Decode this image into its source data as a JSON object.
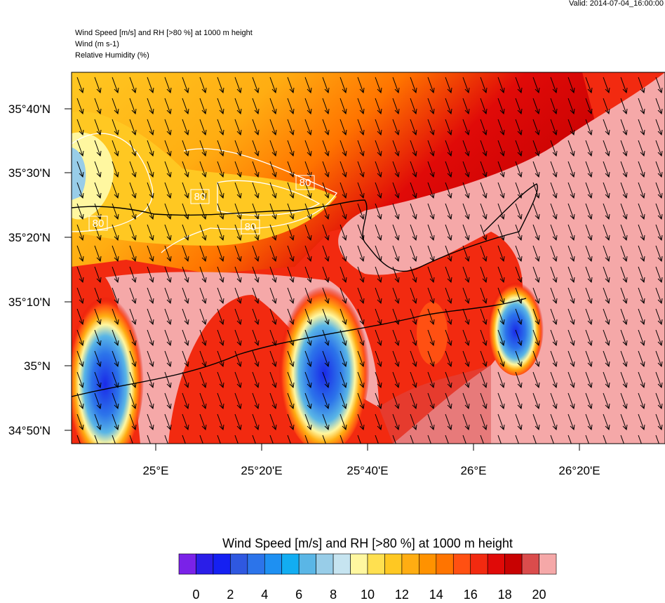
{
  "header": {
    "valid": "Valid: 2014-07-04_16:00:00",
    "title_lines": [
      "Wind Speed [m/s] and RH [>80 %] at 1000 m height",
      "Wind   (m s-1)",
      "Relative Humidity   (%)"
    ]
  },
  "map": {
    "lat_labels": [
      "35°40'N",
      "35°30'N",
      "35°20'N",
      "35°10'N",
      "35°N",
      "34°50'N"
    ],
    "lon_labels": [
      "25°E",
      "25°20'E",
      "25°40'E",
      "26°E",
      "26°20'E"
    ],
    "contour_labels": [
      "80",
      "80",
      "80",
      "80"
    ]
  },
  "colorbar": {
    "title": "Wind Speed [m/s] and RH [>80 %] at 1000 m height",
    "colors": [
      "#7a22e8",
      "#2a1ee8",
      "#1520f2",
      "#2f58e0",
      "#2c74ea",
      "#1e90f2",
      "#12adf2",
      "#5ab6e6",
      "#98cde8",
      "#c6e4f0",
      "#fff7a0",
      "#ffe050",
      "#ffc822",
      "#ffad12",
      "#ff9200",
      "#ff7400",
      "#ff5012",
      "#f22a10",
      "#e00a08",
      "#c80202",
      "#da4c4c",
      "#f5a8a8"
    ],
    "labels": [
      0,
      2,
      4,
      6,
      8,
      10,
      12,
      14,
      16,
      18,
      20
    ]
  }
}
